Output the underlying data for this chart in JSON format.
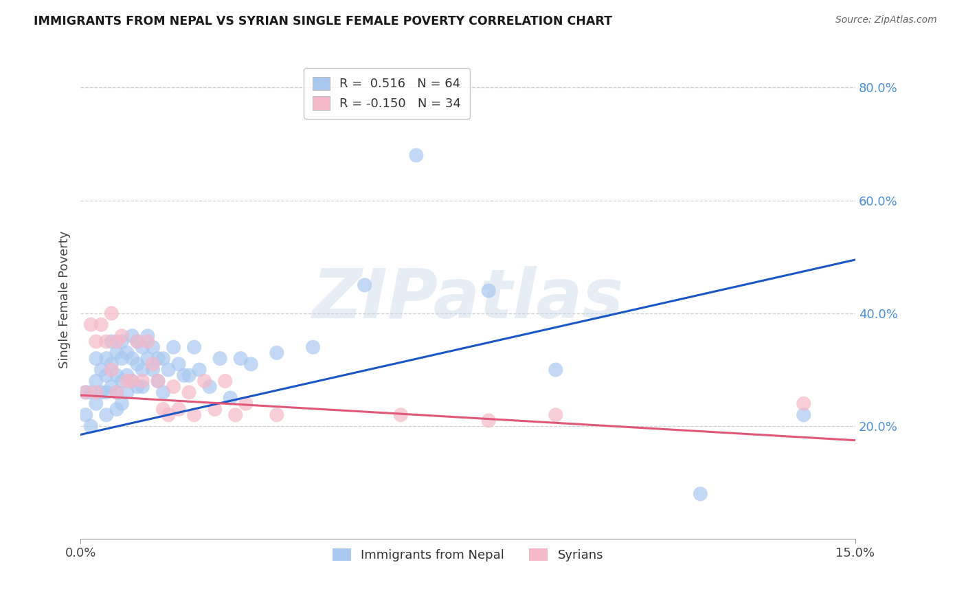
{
  "title": "IMMIGRANTS FROM NEPAL VS SYRIAN SINGLE FEMALE POVERTY CORRELATION CHART",
  "source": "Source: ZipAtlas.com",
  "ylabel": "Single Female Poverty",
  "xlim": [
    0.0,
    0.15
  ],
  "ylim": [
    0.0,
    0.85
  ],
  "right_yticks": [
    0.2,
    0.4,
    0.6,
    0.8
  ],
  "right_ylabels": [
    "20.0%",
    "40.0%",
    "60.0%",
    "80.0%"
  ],
  "xtick_labels": [
    "0.0%",
    "15.0%"
  ],
  "xtick_positions": [
    0.0,
    0.15
  ],
  "blue_fill": "#a8c8f0",
  "pink_fill": "#f5b8c8",
  "blue_line": "#1a56c4",
  "pink_line": "#e05878",
  "nepal_line_x": [
    0.0,
    0.15
  ],
  "nepal_line_y": [
    0.185,
    0.495
  ],
  "syrian_line_x": [
    0.0,
    0.15
  ],
  "syrian_line_y": [
    0.255,
    0.175
  ],
  "legend_label_nepal": "Immigrants from Nepal",
  "legend_label_syrians": "Syrians",
  "legend1_text1": "R =  0.516   N = 64",
  "legend1_text2": "R = -0.150   N = 34",
  "watermark": "ZIPatlas",
  "grid_color": "#d0d0d0",
  "bg_color": "#ffffff",
  "nepal_x": [
    0.001,
    0.001,
    0.002,
    0.002,
    0.003,
    0.003,
    0.003,
    0.004,
    0.004,
    0.005,
    0.005,
    0.005,
    0.005,
    0.006,
    0.006,
    0.006,
    0.007,
    0.007,
    0.007,
    0.007,
    0.008,
    0.008,
    0.008,
    0.008,
    0.009,
    0.009,
    0.009,
    0.01,
    0.01,
    0.01,
    0.011,
    0.011,
    0.011,
    0.012,
    0.012,
    0.012,
    0.013,
    0.013,
    0.014,
    0.014,
    0.015,
    0.015,
    0.016,
    0.016,
    0.017,
    0.018,
    0.019,
    0.02,
    0.021,
    0.022,
    0.023,
    0.025,
    0.027,
    0.029,
    0.031,
    0.033,
    0.038,
    0.045,
    0.055,
    0.065,
    0.079,
    0.092,
    0.12,
    0.14
  ],
  "nepal_y": [
    0.26,
    0.22,
    0.26,
    0.2,
    0.32,
    0.28,
    0.24,
    0.3,
    0.26,
    0.32,
    0.29,
    0.26,
    0.22,
    0.35,
    0.31,
    0.27,
    0.33,
    0.29,
    0.26,
    0.23,
    0.35,
    0.32,
    0.28,
    0.24,
    0.33,
    0.29,
    0.26,
    0.36,
    0.32,
    0.28,
    0.35,
    0.31,
    0.27,
    0.34,
    0.3,
    0.27,
    0.36,
    0.32,
    0.34,
    0.3,
    0.32,
    0.28,
    0.32,
    0.26,
    0.3,
    0.34,
    0.31,
    0.29,
    0.29,
    0.34,
    0.3,
    0.27,
    0.32,
    0.25,
    0.32,
    0.31,
    0.33,
    0.34,
    0.45,
    0.68,
    0.44,
    0.3,
    0.08,
    0.22
  ],
  "syrian_x": [
    0.001,
    0.002,
    0.003,
    0.003,
    0.004,
    0.005,
    0.006,
    0.006,
    0.007,
    0.007,
    0.008,
    0.009,
    0.01,
    0.011,
    0.012,
    0.013,
    0.014,
    0.015,
    0.016,
    0.017,
    0.018,
    0.019,
    0.021,
    0.022,
    0.024,
    0.026,
    0.028,
    0.03,
    0.032,
    0.038,
    0.062,
    0.079,
    0.092,
    0.14
  ],
  "syrian_y": [
    0.26,
    0.38,
    0.35,
    0.26,
    0.38,
    0.35,
    0.4,
    0.3,
    0.35,
    0.26,
    0.36,
    0.28,
    0.28,
    0.35,
    0.28,
    0.35,
    0.31,
    0.28,
    0.23,
    0.22,
    0.27,
    0.23,
    0.26,
    0.22,
    0.28,
    0.23,
    0.28,
    0.22,
    0.24,
    0.22,
    0.22,
    0.21,
    0.22,
    0.24
  ]
}
